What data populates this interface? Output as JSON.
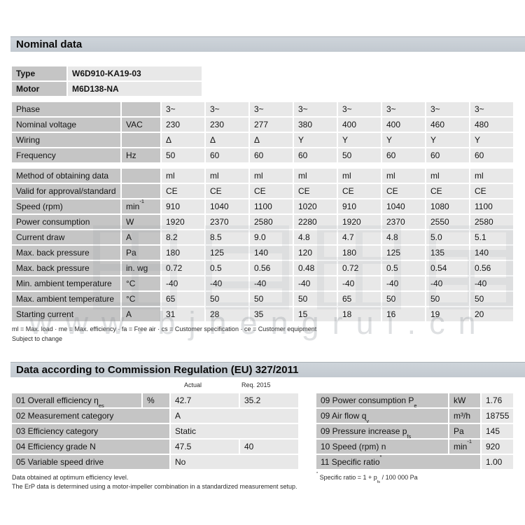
{
  "section1": {
    "title": "Nominal data"
  },
  "id_table": {
    "rows": [
      {
        "label": "Type",
        "values": [
          "W6D910-KA19-03"
        ]
      },
      {
        "label": "Motor",
        "values": [
          "M6D138-NA"
        ]
      }
    ]
  },
  "nominal_table": {
    "group1": [
      {
        "label": "Phase",
        "unit": "",
        "values": [
          "3~",
          "3~",
          "3~",
          "3~",
          "3~",
          "3~",
          "3~",
          "3~"
        ]
      },
      {
        "label": "Nominal voltage",
        "unit": "VAC",
        "values": [
          "230",
          "230",
          "277",
          "380",
          "400",
          "400",
          "460",
          "480"
        ]
      },
      {
        "label": "Wiring",
        "unit": "",
        "values": [
          "Δ",
          "Δ",
          "Δ",
          "Y",
          "Y",
          "Y",
          "Y",
          "Y"
        ]
      },
      {
        "label": "Frequency",
        "unit": "Hz",
        "values": [
          "50",
          "60",
          "60",
          "60",
          "50",
          "60",
          "60",
          "60"
        ]
      }
    ],
    "group2": [
      {
        "label": "Method of obtaining data",
        "unit": "",
        "values": [
          "ml",
          "ml",
          "ml",
          "ml",
          "ml",
          "ml",
          "ml",
          "ml"
        ]
      },
      {
        "label": "Valid for approval/standard",
        "unit": "",
        "values": [
          "CE",
          "CE",
          "CE",
          "CE",
          "CE",
          "CE",
          "CE",
          "CE"
        ]
      },
      {
        "label": "Speed (rpm)",
        "unit": {
          "t": "min",
          "sup": "-1"
        },
        "values": [
          "910",
          "1040",
          "1100",
          "1020",
          "910",
          "1040",
          "1080",
          "1100"
        ]
      },
      {
        "label": "Power consumption",
        "unit": "W",
        "values": [
          "1920",
          "2370",
          "2580",
          "2280",
          "1920",
          "2370",
          "2550",
          "2580"
        ]
      },
      {
        "label": "Current draw",
        "unit": "A",
        "values": [
          "8.2",
          "8.5",
          "9.0",
          "4.8",
          "4.7",
          "4.8",
          "5.0",
          "5.1"
        ]
      },
      {
        "label": "Max. back pressure",
        "unit": "Pa",
        "values": [
          "180",
          "125",
          "140",
          "120",
          "180",
          "125",
          "135",
          "140"
        ]
      },
      {
        "label": "Max. back pressure",
        "unit": "in. wg",
        "values": [
          "0.72",
          "0.5",
          "0.56",
          "0.48",
          "0.72",
          "0.5",
          "0.54",
          "0.56"
        ]
      },
      {
        "label": "Min. ambient temperature",
        "unit": "°C",
        "values": [
          "-40",
          "-40",
          "-40",
          "-40",
          "-40",
          "-40",
          "-40",
          "-40"
        ]
      },
      {
        "label": "Max. ambient temperature",
        "unit": "°C",
        "values": [
          "65",
          "50",
          "50",
          "50",
          "65",
          "50",
          "50",
          "50"
        ]
      },
      {
        "label": "Starting current",
        "unit": "A",
        "values": [
          "31",
          "28",
          "35",
          "15",
          "18",
          "16",
          "19",
          "20"
        ]
      }
    ],
    "footnote1": "ml = Max. load · me = Max. efficiency · fa = Free air · cs = Customer specification · ce = Customer equipment",
    "footnote2": "Subject to change"
  },
  "section2": {
    "title": "Data according to Commission Regulation (EU) 327/2011"
  },
  "erp_left": {
    "col_headers": [
      "Actual",
      "Req. 2015"
    ],
    "rows": [
      {
        "label": {
          "t": "01 Overall efficiency η",
          "sub": "es"
        },
        "unit": "%",
        "values": [
          "42.7",
          "35.2"
        ]
      },
      {
        "label": {
          "t": "02 Measurement category",
          "span": 2
        },
        "values": [
          {
            "t": "A",
            "span": 2
          }
        ]
      },
      {
        "label": {
          "t": "03 Efficiency category",
          "span": 2
        },
        "values": [
          {
            "t": "Static",
            "span": 2
          }
        ]
      },
      {
        "label": {
          "t": "04 Efficiency grade N",
          "span": 2
        },
        "values": [
          "47.5",
          "40"
        ]
      },
      {
        "label": {
          "t": "05 Variable speed drive",
          "span": 2
        },
        "values": [
          {
            "t": "No",
            "span": 2
          }
        ]
      }
    ],
    "footnote1": "Data obtained at optimum efficiency level.",
    "footnote2": "The ErP data is determined using a motor-impeller combination in a standardized measurement setup."
  },
  "erp_right": {
    "rows": [
      {
        "label": {
          "t": "09 Power consumption P",
          "sub": "e"
        },
        "unit": "kW",
        "values": [
          "1.76"
        ]
      },
      {
        "label": {
          "t": "09 Air flow q",
          "sub": "v"
        },
        "unit": "m³/h",
        "values": [
          "18755"
        ]
      },
      {
        "label": {
          "t": "09 Pressure increase p",
          "sub": "fs"
        },
        "unit": "Pa",
        "values": [
          "145"
        ]
      },
      {
        "label": {
          "t": "10 Speed (rpm) n"
        },
        "unit": {
          "t": "min",
          "sup": "-1"
        },
        "values": [
          "920"
        ]
      },
      {
        "label": {
          "t": "11 Specific ratio",
          "sup": "*",
          "span": 2
        },
        "values": [
          "1.00"
        ]
      }
    ],
    "footnote": {
      "star": "*",
      "pre": " Specific ratio = 1 + p",
      "sub": "fs",
      "post": " / 100 000 Pa"
    }
  },
  "watermark": {
    "url": "www.bjhengrui.cn"
  },
  "colors": {
    "section_bar": "#c5ccd3",
    "label_cell": "#c5c5c5",
    "value_cell": "#e8e8e8"
  }
}
